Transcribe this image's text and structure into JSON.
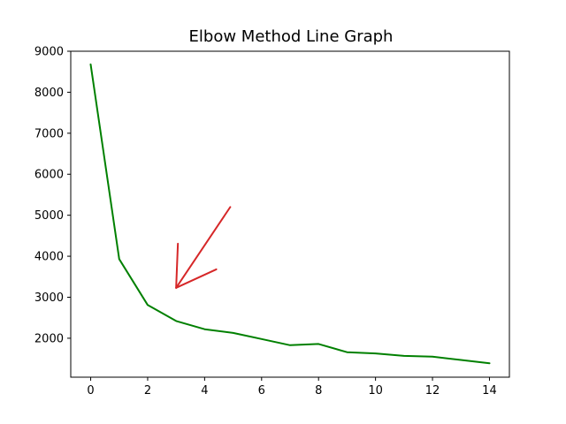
{
  "chart_data": {
    "type": "line",
    "title": "Elbow Method Line Graph",
    "xlabel": "",
    "ylabel": "",
    "xlim": [
      -0.7,
      14.7
    ],
    "ylim": [
      1050,
      9000
    ],
    "xticks": [
      0,
      2,
      4,
      6,
      8,
      10,
      12,
      14
    ],
    "yticks": [
      2000,
      3000,
      4000,
      5000,
      6000,
      7000,
      8000,
      9000
    ],
    "grid": false,
    "series": [
      {
        "color": "#008000",
        "x": [
          0,
          1,
          2,
          3,
          4,
          5,
          6,
          7,
          8,
          9,
          10,
          11,
          12,
          13,
          14
        ],
        "y": [
          8680,
          3930,
          2810,
          2420,
          2220,
          2130,
          1980,
          1830,
          1860,
          1660,
          1630,
          1570,
          1550,
          1470,
          1390
        ]
      }
    ],
    "annotations": [
      {
        "type": "arrow",
        "color": "#d62728",
        "from": [
          4.9,
          5200
        ],
        "to": [
          3.0,
          3230
        ]
      }
    ]
  }
}
